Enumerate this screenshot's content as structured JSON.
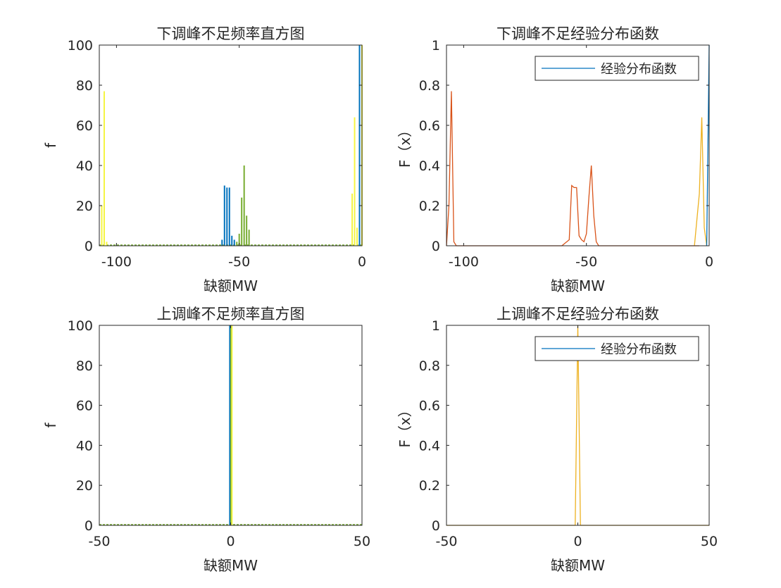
{
  "colors": {
    "blue": "#0072BD",
    "orange": "#D95319",
    "yellow": "#EDB120",
    "bright_yellow": "#F5F542",
    "green": "#77AC30",
    "light_blue": "#4DBEEE",
    "axis": "#262626",
    "teal_legend": "#0072BD"
  },
  "chart_data": [
    {
      "id": "p1",
      "type": "bar",
      "title": "下调峰不足频率直方图",
      "xlabel": "缺额MW",
      "ylabel": "f",
      "xlim": [
        -107,
        0
      ],
      "ylim": [
        0,
        100
      ],
      "xticks": [
        -100,
        -50,
        0
      ],
      "xtick_labels": [
        "-100",
        "-50",
        "0"
      ],
      "yticks": [
        0,
        20,
        40,
        60,
        80,
        100
      ],
      "ytick_labels": [
        "0",
        "20",
        "40",
        "60",
        "80",
        "100"
      ],
      "series": [
        {
          "color": "bright_yellow",
          "bars": [
            {
              "x": -106,
              "value": 20
            },
            {
              "x": -105,
              "value": 77
            },
            {
              "x": -104,
              "value": 2
            },
            {
              "x": -4,
              "value": 26
            },
            {
              "x": -3,
              "value": 64
            },
            {
              "x": -2,
              "value": 9
            }
          ]
        },
        {
          "color": "blue",
          "bars": [
            {
              "x": -57,
              "value": 3
            },
            {
              "x": -56,
              "value": 30
            },
            {
              "x": -55,
              "value": 29
            },
            {
              "x": -54,
              "value": 29
            },
            {
              "x": -53,
              "value": 5
            },
            {
              "x": -52,
              "value": 3
            },
            {
              "x": -1,
              "value": 100
            }
          ]
        },
        {
          "color": "green",
          "bars": [
            {
              "x": -51,
              "value": 2
            },
            {
              "x": -50,
              "value": 6
            },
            {
              "x": -49,
              "value": 24
            },
            {
              "x": -48,
              "value": 40
            },
            {
              "x": -47,
              "value": 15
            },
            {
              "x": -46,
              "value": 8
            }
          ]
        },
        {
          "color": "bright_yellow",
          "bars": [
            {
              "x": 0,
              "value": 100
            }
          ]
        }
      ],
      "baseline_color": "green"
    },
    {
      "id": "p2",
      "type": "line",
      "title": "下调峰不足经验分布函数",
      "xlabel": "缺额MW",
      "ylabel": "F（x）",
      "xlim": [
        -107,
        0
      ],
      "ylim": [
        0,
        1
      ],
      "xticks": [
        -100,
        -50,
        0
      ],
      "xtick_labels": [
        "-100",
        "-50",
        "0"
      ],
      "yticks": [
        0,
        0.2,
        0.4,
        0.6,
        0.8,
        1
      ],
      "ytick_labels": [
        "0",
        "0.2",
        "0.4",
        "0.6",
        "0.8",
        "1"
      ],
      "legend": {
        "entries": [
          "经验分布函数"
        ],
        "location": "top-right",
        "line_color": "teal_legend"
      },
      "series": [
        {
          "color": "orange",
          "x": [
            -107,
            -106,
            -105,
            -104,
            -103,
            -60,
            -57,
            -56,
            -55,
            -54,
            -53,
            -52,
            -51,
            -50,
            -49,
            -48,
            -47,
            -46,
            -45,
            -8,
            -4
          ],
          "y": [
            0,
            0.2,
            0.77,
            0.02,
            0,
            0,
            0.03,
            0.3,
            0.29,
            0.29,
            0.05,
            0.03,
            0.02,
            0.06,
            0.24,
            0.4,
            0.15,
            0.02,
            0,
            0,
            0
          ]
        },
        {
          "color": "yellow",
          "x": [
            -6,
            -4,
            -3,
            -2,
            -1
          ],
          "y": [
            0,
            0.26,
            0.64,
            0.09,
            0
          ]
        },
        {
          "color": "blue",
          "x": [
            -1,
            0
          ],
          "y": [
            0,
            1
          ]
        }
      ]
    },
    {
      "id": "p3",
      "type": "bar",
      "title": "上调峰不足频率直方图",
      "xlabel": "缺额MW",
      "ylabel": "f",
      "xlim": [
        -50,
        50
      ],
      "ylim": [
        0,
        100
      ],
      "xticks": [
        -50,
        0,
        50
      ],
      "xtick_labels": [
        "-50",
        "0",
        "50"
      ],
      "yticks": [
        0,
        20,
        40,
        60,
        80,
        100
      ],
      "ytick_labels": [
        "0",
        "20",
        "40",
        "60",
        "80",
        "100"
      ],
      "series": [
        {
          "color": "blue",
          "bars": [
            {
              "x": -0.3,
              "value": 100
            }
          ]
        },
        {
          "color": "green",
          "bars": [
            {
              "x": 0.1,
              "value": 100
            }
          ]
        },
        {
          "color": "bright_yellow",
          "bars": [
            {
              "x": 0.5,
              "value": 100
            }
          ]
        }
      ],
      "baseline_color": "green"
    },
    {
      "id": "p4",
      "type": "line",
      "title": "上调峰不足经验分布函数",
      "xlabel": "缺额MW",
      "ylabel": "F（x）",
      "xlim": [
        -50,
        50
      ],
      "ylim": [
        0,
        1
      ],
      "xticks": [
        -50,
        0,
        50
      ],
      "xtick_labels": [
        "-50",
        "0",
        "50"
      ],
      "yticks": [
        0,
        0.2,
        0.4,
        0.6,
        0.8,
        1
      ],
      "ytick_labels": [
        "0",
        "0.2",
        "0.4",
        "0.6",
        "0.8",
        "1"
      ],
      "legend": {
        "entries": [
          "经验分布函数"
        ],
        "location": "top-right",
        "line_color": "teal_legend"
      },
      "series": [
        {
          "color": "yellow",
          "x": [
            -50,
            -1,
            0,
            1,
            50
          ],
          "y": [
            0,
            0,
            1,
            0,
            0
          ]
        }
      ]
    }
  ]
}
